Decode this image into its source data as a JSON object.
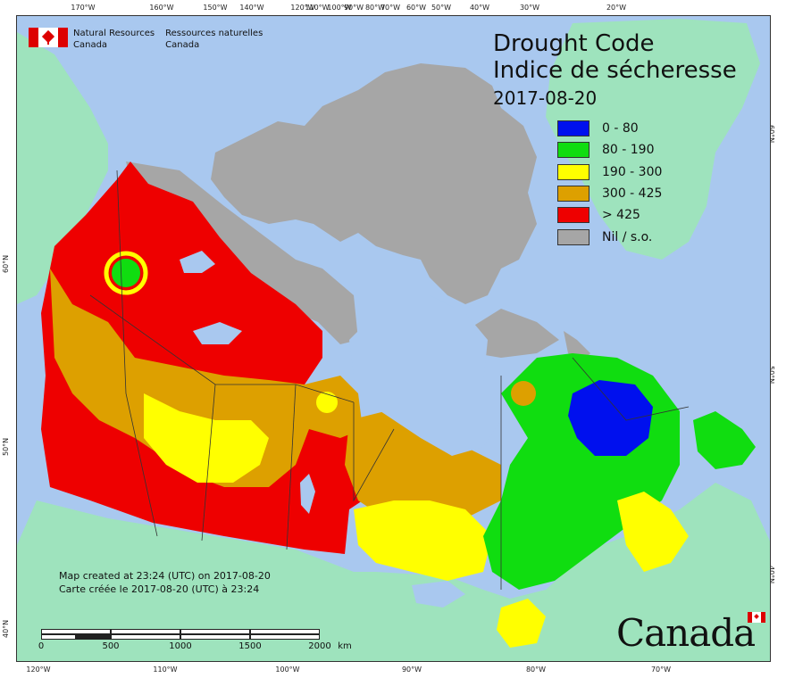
{
  "header": {
    "agency_en": "Natural Resources\nCanada",
    "agency_en_l1": "Natural Resources",
    "agency_en_l2": "Canada",
    "agency_fr_l1": "Ressources naturelles",
    "agency_fr_l2": "Canada"
  },
  "title": {
    "line1": "Drought Code",
    "line2": "Indice de sécheresse",
    "date": "2017-08-20"
  },
  "legend": [
    {
      "label": "0 - 80",
      "color": "#0010ee"
    },
    {
      "label": "80 - 190",
      "color": "#10dd10"
    },
    {
      "label": "190 - 300",
      "color": "#ffff00"
    },
    {
      "label": "300 - 425",
      "color": "#dda000"
    },
    {
      "label": "> 425",
      "color": "#ee0000"
    },
    {
      "label": "Nil / s.o.",
      "color": "#a6a6a6"
    }
  ],
  "colors": {
    "water": "#a9c8ef",
    "foreign_land": "#9ee3bd",
    "no_data": "#a6a6a6",
    "class_0_80": "#0010ee",
    "class_80_190": "#10dd10",
    "class_190_300": "#ffff00",
    "class_300_425": "#dda000",
    "class_gt_425": "#ee0000"
  },
  "axes": {
    "top": [
      "170°W",
      "160°W",
      "150°W",
      "140°W",
      "120°W",
      "110°W",
      "100°W",
      "90°W",
      "80°W",
      "70°W",
      "60°W",
      "50°W",
      "40°W",
      "30°W",
      "20°W"
    ],
    "bottom": [
      "120°W",
      "110°W",
      "100°W",
      "90°W",
      "80°W",
      "70°W"
    ],
    "left": [
      "60°N",
      "50°N",
      "40°N"
    ],
    "right": [
      "60°N",
      "50°N",
      "40°N"
    ]
  },
  "credit": {
    "line1": "Map created at 23:24 (UTC) on 2017-08-20",
    "line2": "Carte créée le 2017-08-20 (UTC) à 23:24"
  },
  "scale": {
    "labels": [
      "0",
      "500",
      "1000",
      "1500",
      "2000"
    ],
    "unit": "km"
  },
  "wordmark": "Canada"
}
